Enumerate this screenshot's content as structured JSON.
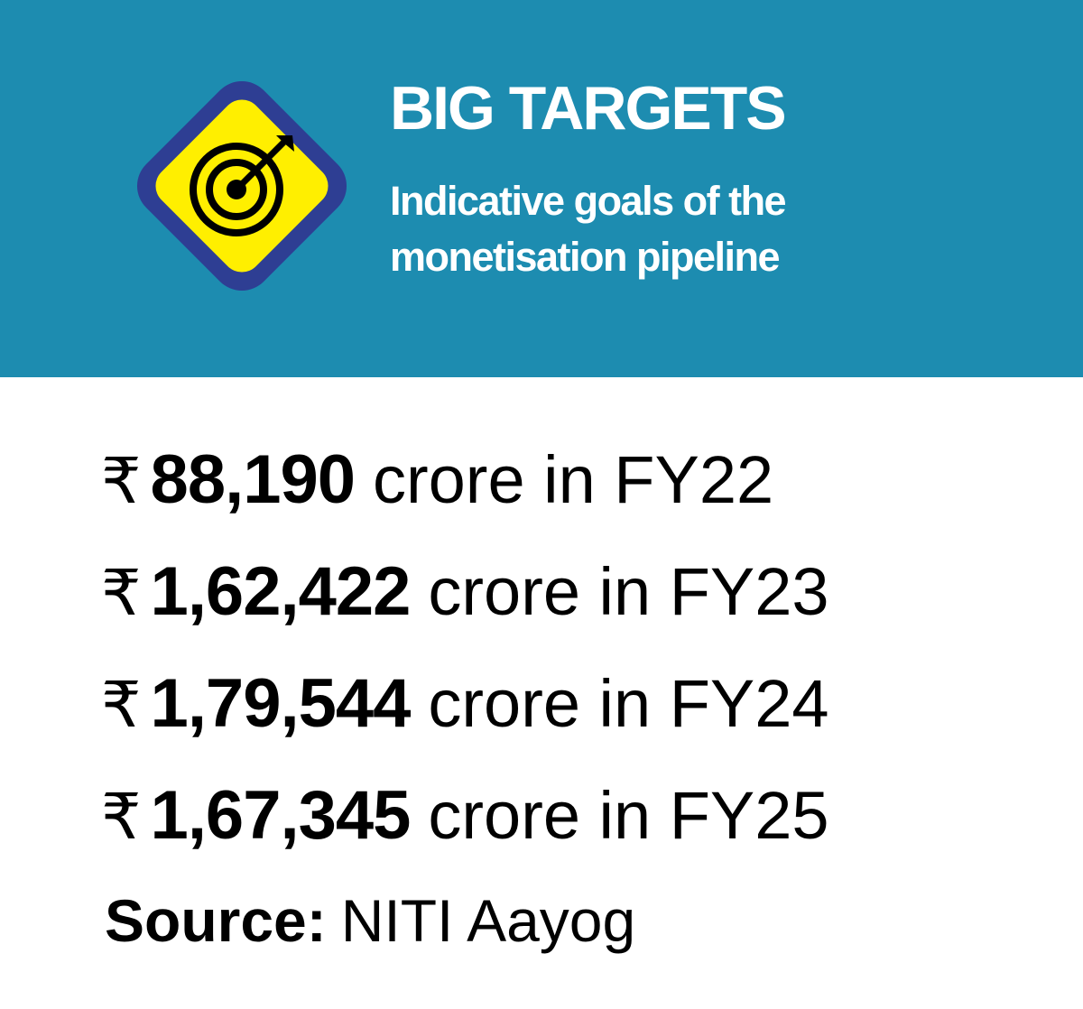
{
  "colors": {
    "header_background": "#1d8cb0",
    "icon_outer": "#2e3e93",
    "icon_inner": "#ffef00",
    "icon_stroke": "#000000",
    "text_light": "#ffffff",
    "text_dark": "#000000"
  },
  "header": {
    "icon": "target-icon",
    "title": "BIG TARGETS",
    "subtitle": "Indicative goals of the monetisation pipeline"
  },
  "targets": [
    {
      "currency": "₹",
      "amount": "88,190",
      "description": "crore in FY22"
    },
    {
      "currency": "₹",
      "amount": "1,62,422",
      "description": "crore in FY23"
    },
    {
      "currency": "₹",
      "amount": "1,79,544",
      "description": "crore in FY24"
    },
    {
      "currency": "₹",
      "amount": "1,67,345",
      "description": "crore in FY25"
    }
  ],
  "source": {
    "label": "Source:",
    "value": "NITI Aayog"
  }
}
